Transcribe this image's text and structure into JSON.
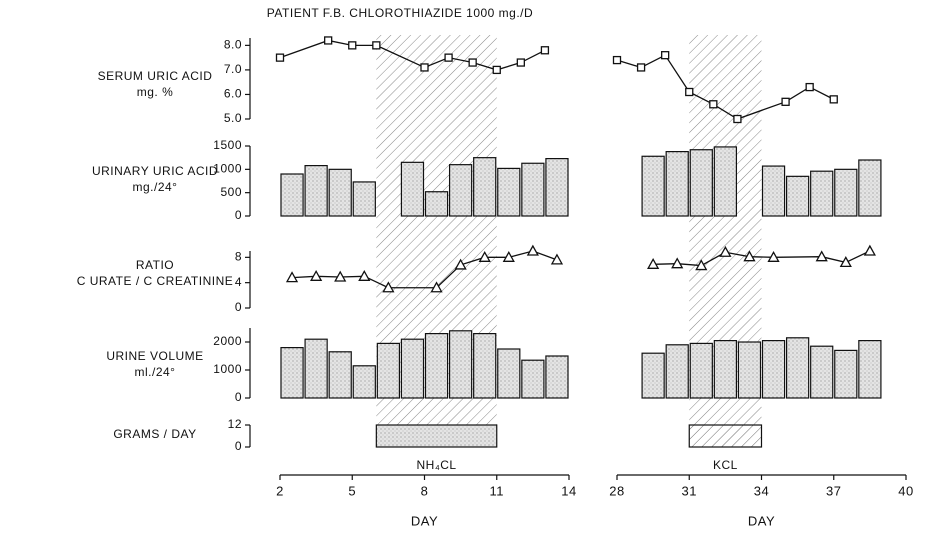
{
  "chart_data": {
    "type": "multi-panel",
    "title": "PATIENT F.B. CHLOROTHIAZIDE 1000 mg./D",
    "columns": [
      {
        "xlim": [
          2,
          14
        ],
        "xticks": [
          2,
          5,
          8,
          11,
          14
        ],
        "xlabel": "DAY",
        "treatment": "NH₄CL"
      },
      {
        "xlim": [
          28,
          40
        ],
        "xticks": [
          28,
          31,
          34,
          37,
          40
        ],
        "xlabel": "DAY",
        "treatment": "KCL"
      }
    ],
    "rows": [
      {
        "type": "line",
        "marker": "square",
        "label": [
          "SERUM URIC ACID",
          "mg. %"
        ],
        "ylim": [
          5,
          8.3
        ],
        "yticks": [
          {
            "value": 5,
            "label": "5.0"
          },
          {
            "value": 6,
            "label": "6.0"
          },
          {
            "value": 7,
            "label": "7.0"
          },
          {
            "value": 8,
            "label": "8.0"
          }
        ],
        "series": [
          {
            "x": [
              2,
              4,
              5,
              6,
              8,
              9,
              10,
              11,
              12,
              13
            ],
            "values": [
              7.5,
              8.2,
              8.0,
              8.0,
              7.1,
              7.5,
              7.3,
              7.0,
              7.3,
              7.8
            ]
          },
          {
            "x": [
              28,
              29,
              30,
              31,
              32,
              33,
              35,
              36,
              37
            ],
            "values": [
              7.4,
              7.1,
              7.6,
              6.1,
              5.6,
              5.0,
              5.7,
              6.3,
              5.8
            ]
          }
        ]
      },
      {
        "type": "bar",
        "label": [
          "URINARY URIC ACID",
          "mg./24°"
        ],
        "ylim": [
          0,
          1500
        ],
        "yticks": [
          0,
          500,
          1000,
          1500
        ],
        "series": [
          {
            "x": [
              2,
              3,
              4,
              5,
              7,
              8,
              9,
              10,
              11,
              12,
              13
            ],
            "values": [
              900,
              1080,
              1000,
              730,
              1150,
              520,
              1100,
              1250,
              1020,
              1130,
              1230
            ]
          },
          {
            "x": [
              29,
              30,
              31,
              32,
              34,
              35,
              36,
              37,
              38
            ],
            "values": [
              1280,
              1380,
              1420,
              1480,
              1070,
              850,
              960,
              1000,
              1200
            ]
          }
        ]
      },
      {
        "type": "line",
        "marker": "triangle",
        "label": [
          "RATIO",
          "C URATE / C CREATININE"
        ],
        "ylim": [
          0,
          9
        ],
        "yticks": [
          0,
          4,
          8
        ],
        "series": [
          {
            "x": [
              2.5,
              3.5,
              4.5,
              5.5,
              6.5,
              8.5,
              9.5,
              10.5,
              11.5,
              12.5,
              13.5
            ],
            "values": [
              4.8,
              5.0,
              4.9,
              5.0,
              3.2,
              3.2,
              6.8,
              8.0,
              8.0,
              9.0,
              7.6
            ]
          },
          {
            "x": [
              29.5,
              30.5,
              31.5,
              32.5,
              33.5,
              34.5,
              36.5,
              37.5,
              38.5
            ],
            "values": [
              6.9,
              7.0,
              6.7,
              8.8,
              8.1,
              8.0,
              8.1,
              7.2,
              9.0
            ]
          }
        ]
      },
      {
        "type": "bar",
        "label": [
          "URINE VOLUME",
          "ml./24°"
        ],
        "ylim": [
          0,
          2500
        ],
        "yticks": [
          0,
          1000,
          2000
        ],
        "series": [
          {
            "x": [
              2,
              3,
              4,
              5,
              6,
              7,
              8,
              9,
              10,
              11,
              12,
              13
            ],
            "values": [
              1800,
              2100,
              1650,
              1150,
              1950,
              2100,
              2300,
              2400,
              2300,
              1750,
              1350,
              1500
            ]
          },
          {
            "x": [
              29,
              30,
              31,
              32,
              33,
              34,
              35,
              36,
              37,
              38
            ],
            "values": [
              1600,
              1900,
              1950,
              2050,
              2000,
              2050,
              2150,
              1850,
              1700,
              2050
            ]
          }
        ]
      },
      {
        "type": "span",
        "label": [
          "GRAMS / DAY"
        ],
        "ylim": [
          0,
          12
        ],
        "yticks": [
          0,
          12
        ],
        "series": [
          {
            "x": [
              6
            ],
            "x2": [
              11
            ],
            "values": [
              12
            ]
          },
          {
            "x": [
              31
            ],
            "x2": [
              34
            ],
            "values": [
              12
            ]
          }
        ]
      }
    ]
  }
}
